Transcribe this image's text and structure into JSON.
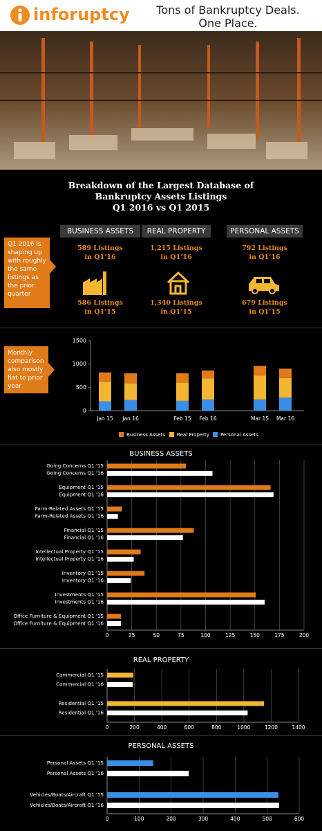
{
  "header": {
    "logo": "inforuptcy",
    "tagline": [
      "Tons of Bankruptcy Deals.",
      "One Place."
    ]
  },
  "title": [
    "Breakdown of the Largest Database of",
    "Bankruptcy Assets Listings",
    "Q1 2016 vs Q1 2015"
  ],
  "callouts": [
    "Q1 2016 is shaping up with roughly the same listings as the prior quarter",
    "Monthly comparison also mostly flat to prior year"
  ],
  "summary": [
    {
      "heading": "BUSINESS ASSETS",
      "q1_16": [
        "589 Listings",
        "in Q1’16"
      ],
      "q1_15": [
        "586 Listings",
        "in Q1’15"
      ]
    },
    {
      "heading": "REAL PROPERTY",
      "q1_16": [
        "1,215 Listings",
        "in Q1’16"
      ],
      "q1_15": [
        "1,340 Listings",
        "in Q1’15"
      ]
    },
    {
      "heading": "PERSONAL ASSETS",
      "q1_16": [
        "792 Listings",
        "in Q1’16"
      ],
      "q1_15": [
        "679 Listings",
        "in Q1’15"
      ]
    }
  ],
  "chart_data": [
    {
      "type": "stacked_bar",
      "categories": [
        "Jan 15",
        "Jan 16",
        "Feb 15",
        "Feb 16",
        "Mar 15",
        "Mar 16"
      ],
      "series": [
        {
          "name": "Business Assets",
          "color": "#e07b1a",
          "values": [
            200,
            210,
            200,
            170,
            210,
            200
          ]
        },
        {
          "name": "Real Property",
          "color": "#f2b632",
          "values": [
            420,
            360,
            390,
            450,
            510,
            420
          ]
        },
        {
          "name": "Personal Assets",
          "color": "#3a8ee6",
          "values": [
            200,
            230,
            210,
            240,
            240,
            280
          ]
        }
      ],
      "ylim": [
        0,
        1500
      ],
      "yticks": [
        0,
        500,
        1000,
        1500
      ],
      "legend": "bottom"
    },
    {
      "type": "hbar",
      "title": "BUSINESS ASSETS",
      "categories": [
        "Going Concerns Q1 '15",
        "Going Concerns Q1 '16",
        "Equipment Q1 '15",
        "Equipment Q1 '16",
        "Farm-Related Assets Q1 '15",
        "Farm-Related Assets Q1 '16",
        "Financial Q1 '15",
        "Financial Q1 '16",
        "Intellectual Property Q1 '15",
        "Intellectual Property Q1 '16",
        "Inventory Q1 '15",
        "Inventory Q1 '16",
        "Investments Q1 '15",
        "Investments Q1 '16",
        "Office Furniture & Equipment Q1 '15",
        "Office Furniture & Equipment Q1 '16"
      ],
      "values": [
        80,
        107,
        166,
        169,
        15,
        11,
        88,
        77,
        34,
        27,
        38,
        24,
        151,
        160,
        14,
        14
      ],
      "colors": [
        "#e07b1a",
        "#ffffff",
        "#e07b1a",
        "#ffffff",
        "#e07b1a",
        "#ffffff",
        "#e07b1a",
        "#ffffff",
        "#e07b1a",
        "#ffffff",
        "#e07b1a",
        "#ffffff",
        "#e07b1a",
        "#ffffff",
        "#e07b1a",
        "#ffffff"
      ],
      "xlim": [
        0,
        200
      ],
      "xticks": [
        0,
        25,
        50,
        75,
        100,
        125,
        150,
        175,
        200
      ],
      "grid": true
    },
    {
      "type": "hbar",
      "title": "REAL PROPERTY",
      "categories": [
        "Commercial Q1 '15",
        "Commercial Q1 '16",
        "Residential Q1 '15",
        "Residential Q1 '16"
      ],
      "values": [
        192,
        187,
        1148,
        1028
      ],
      "colors": [
        "#f2b632",
        "#ffffff",
        "#f2b632",
        "#ffffff"
      ],
      "xlim": [
        0,
        1400
      ],
      "xticks": [
        0,
        200,
        400,
        600,
        800,
        1000,
        1200,
        1400
      ],
      "grid": true
    },
    {
      "type": "hbar",
      "title": "PERSONAL ASSETS",
      "categories": [
        "Personal Assets Q1 '15",
        "Personal Assets Q1 '16",
        "Vehicles/Boats/Aircraft Q1 '15",
        "Vehicles/Boats/Aircraft Q1 '16"
      ],
      "values": [
        144,
        255,
        535,
        537
      ],
      "colors": [
        "#3a8ee6",
        "#ffffff",
        "#3a8ee6",
        "#ffffff"
      ],
      "xlim": [
        0,
        600
      ],
      "xticks": [
        0,
        100,
        200,
        300,
        400,
        500,
        600
      ],
      "grid": true
    }
  ]
}
